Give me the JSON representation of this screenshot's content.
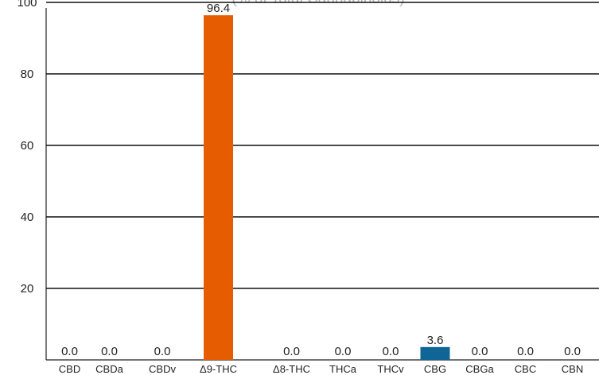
{
  "chart_data": {
    "type": "bar",
    "subtitle": "(% of Total Cannabinoids)",
    "categories": [
      "CBD",
      "CBDa",
      "CBDv",
      "Δ9-THC",
      "Δ8-THC",
      "THCa",
      "THCv",
      "CBG",
      "CBGa",
      "CBC",
      "CBN"
    ],
    "values": [
      0.0,
      0.0,
      0.0,
      96.4,
      0.0,
      0.0,
      0.0,
      3.6,
      0.0,
      0.0,
      0.0
    ],
    "value_labels": [
      "0.0",
      "0.0",
      "0.0",
      "96.4",
      "0.0",
      "0.0",
      "0.0",
      "3.6",
      "0.0",
      "0.0",
      "0.0"
    ],
    "bar_colors": [
      "#e65c00",
      "#e65c00",
      "#e65c00",
      "#e65c00",
      "#e65c00",
      "#e65c00",
      "#e65c00",
      "#0e6596",
      "#0e6596",
      "#0e6596",
      "#0e6596"
    ],
    "ylim": [
      0,
      100
    ],
    "yticks": [
      20,
      40,
      60,
      80,
      100
    ],
    "xlabel": "",
    "ylabel": "",
    "grid": true,
    "legend": "none"
  }
}
